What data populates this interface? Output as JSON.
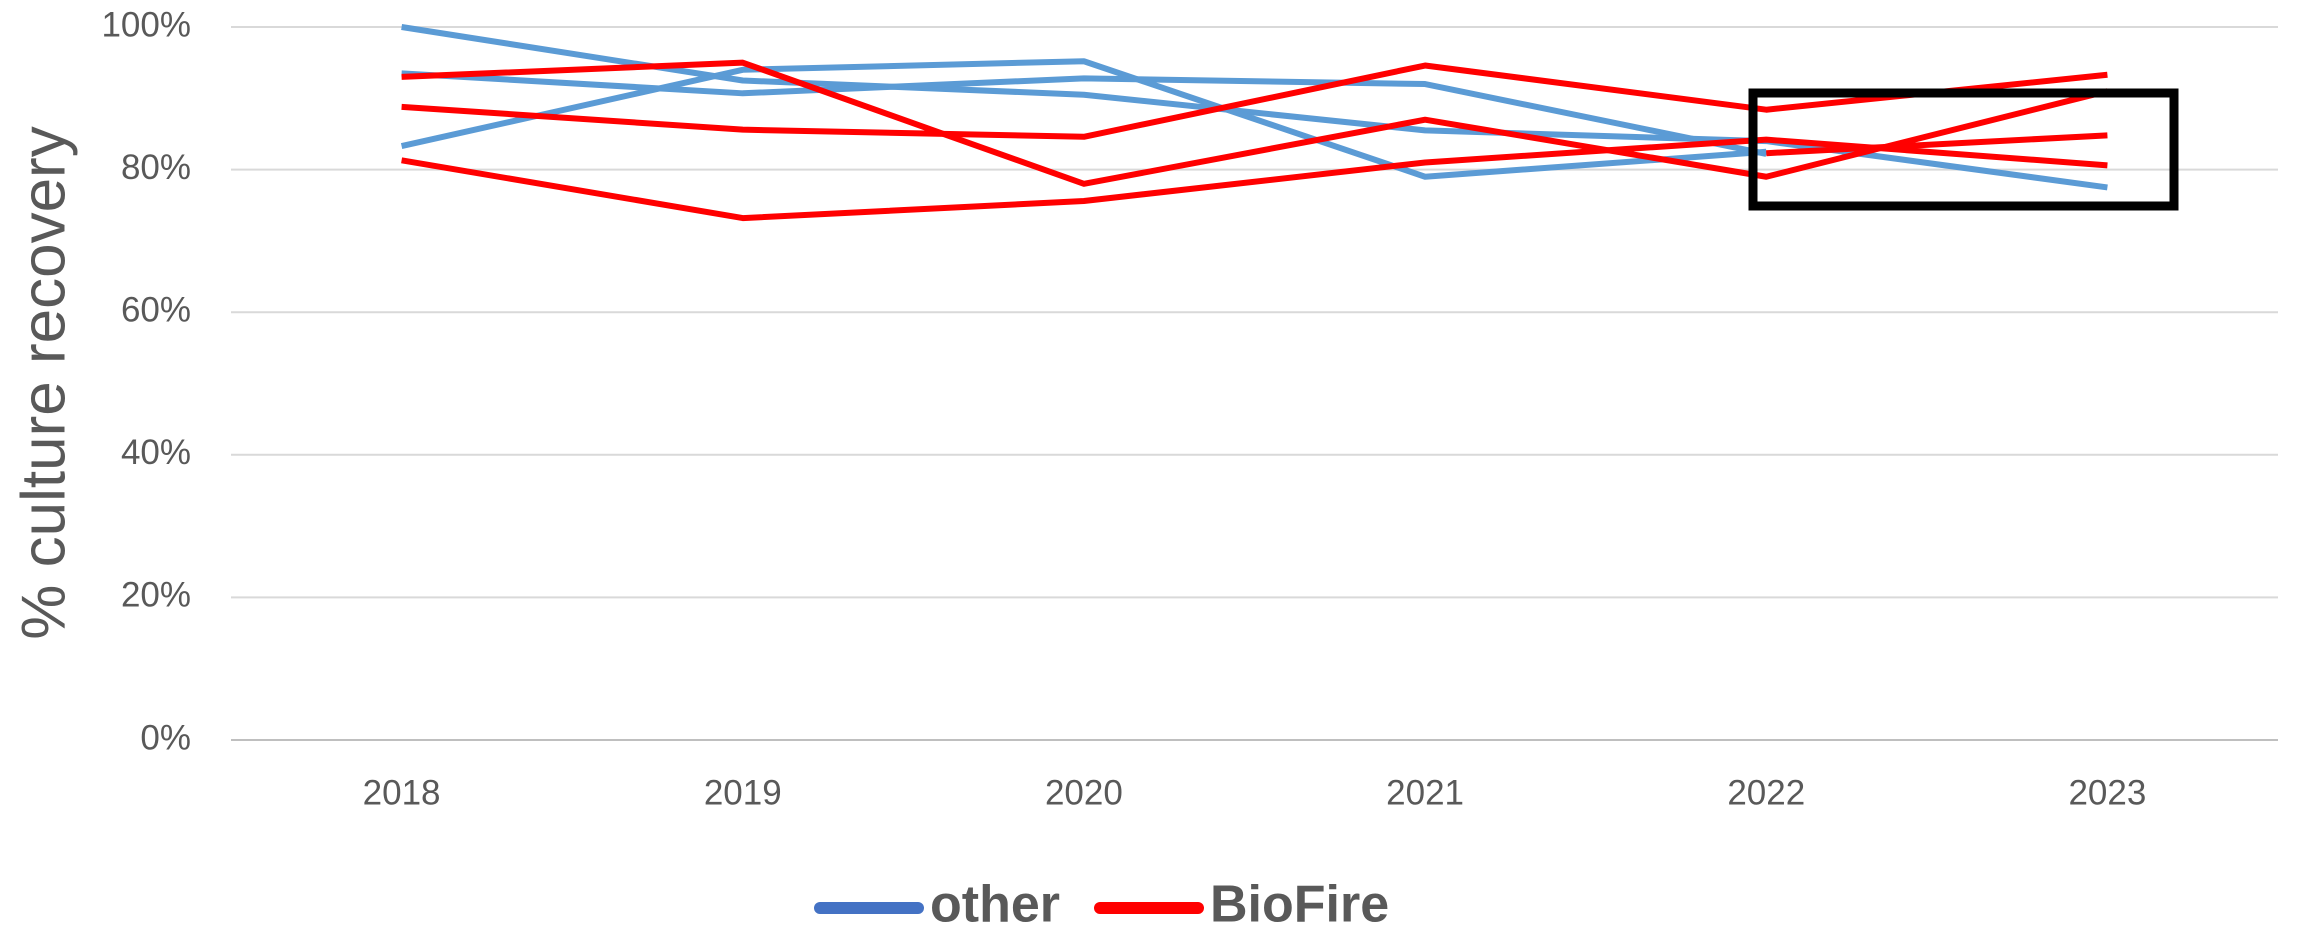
{
  "chart_data": {
    "type": "line",
    "y_label": "% culture recovery",
    "categories": [
      "2018",
      "2019",
      "2020",
      "2021",
      "2022",
      "2023"
    ],
    "series": [
      {
        "name": "other",
        "color": "#5b9bd5",
        "legend_color": "#4472c4",
        "values": [
          [
            100,
            92.5,
            90.5,
            85.5,
            84,
            77.5
          ],
          [
            83.3,
            94,
            95.2,
            79,
            82.5,
            null
          ],
          [
            93.5,
            90.7,
            92.8,
            92,
            82.2,
            null
          ]
        ]
      },
      {
        "name": "BioFire",
        "color": "#ff0000",
        "legend_color": "#ff0000",
        "values": [
          [
            93,
            95,
            78,
            87,
            79,
            91
          ],
          [
            88.8,
            85.6,
            84.6,
            94.6,
            88.4,
            93.3
          ],
          [
            81.3,
            73.2,
            75.6,
            81,
            84.2,
            80.6
          ],
          [
            null,
            null,
            null,
            null,
            82.3,
            84.8
          ]
        ]
      }
    ],
    "ylim": [
      0,
      100
    ],
    "yticks": [
      {
        "value": 0,
        "label": "0%"
      },
      {
        "value": 20,
        "label": "20%"
      },
      {
        "value": 40,
        "label": "40%"
      },
      {
        "value": 60,
        "label": "60%"
      },
      {
        "value": 80,
        "label": "80%"
      },
      {
        "value": 100,
        "label": "100%"
      }
    ],
    "grid": true
  }
}
